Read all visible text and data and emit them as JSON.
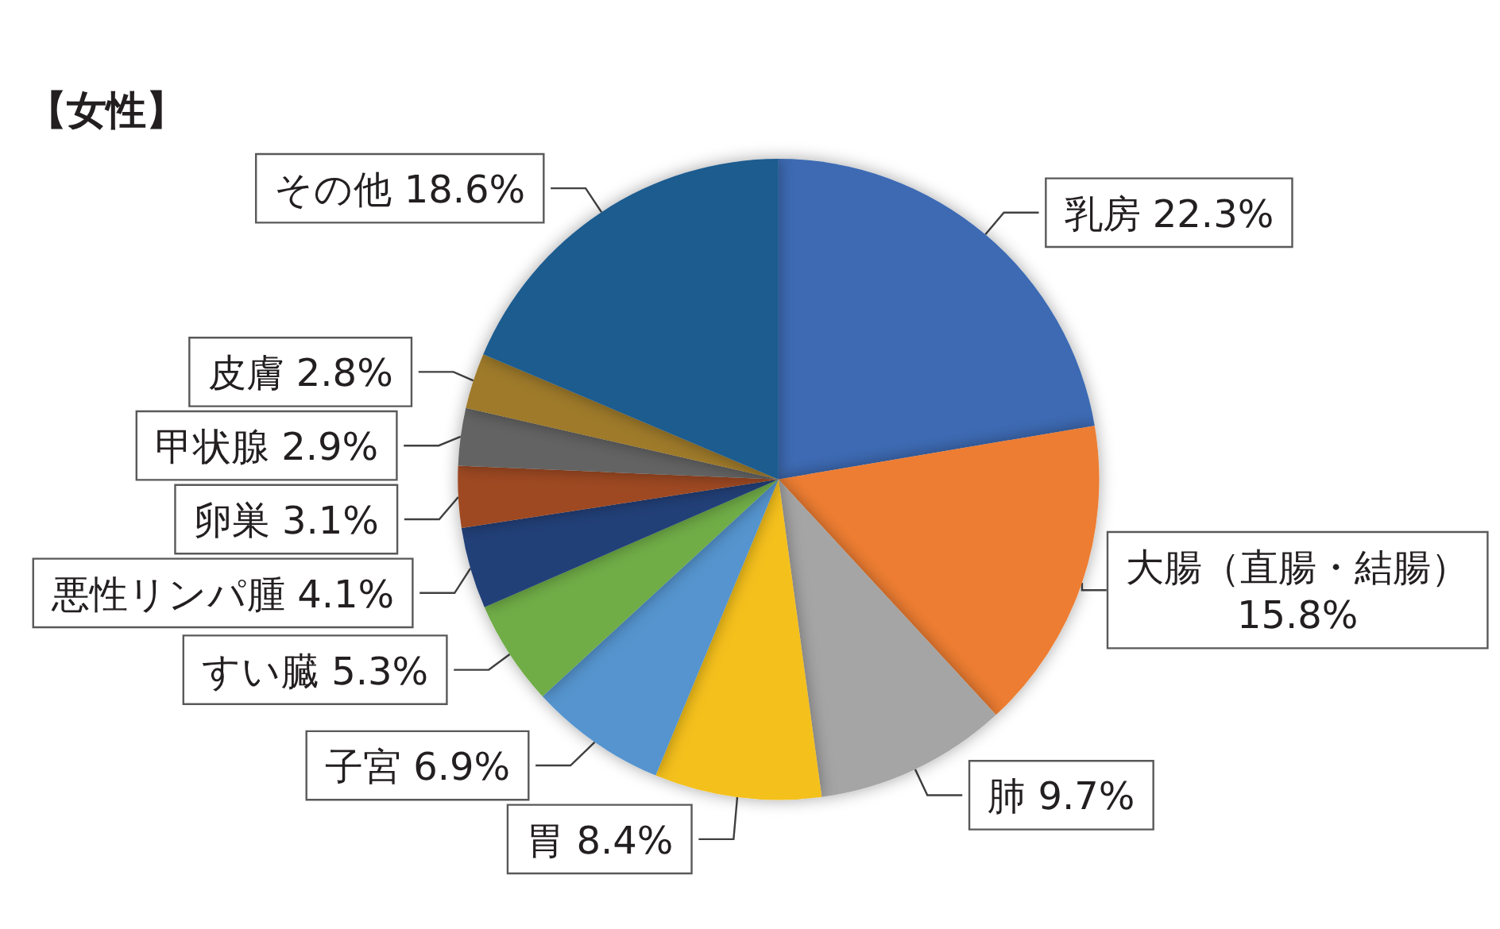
{
  "chart_data": {
    "type": "pie",
    "title": "【女性】",
    "categories": [
      "乳房",
      "大腸（直腸・結腸）",
      "肺",
      "胃",
      "子宮",
      "すい臓",
      "悪性リンパ腫",
      "卵巣",
      "甲状腺",
      "皮膚",
      "その他"
    ],
    "values": [
      22.3,
      15.8,
      9.7,
      8.4,
      6.9,
      5.3,
      4.1,
      3.1,
      2.9,
      2.8,
      18.6
    ],
    "value_labels": [
      "22.3%",
      "15.8%",
      "9.7%",
      "8.4%",
      "6.9%",
      "5.3%",
      "4.1%",
      "3.1%",
      "2.9%",
      "2.8%",
      "18.6%"
    ],
    "colors": [
      "#3d6bb3",
      "#ed7d31",
      "#a5a5a5",
      "#f4c01e",
      "#5494ce",
      "#70ad47",
      "#223f78",
      "#9e4a23",
      "#636363",
      "#9e7a29",
      "#1f5b8f"
    ]
  }
}
